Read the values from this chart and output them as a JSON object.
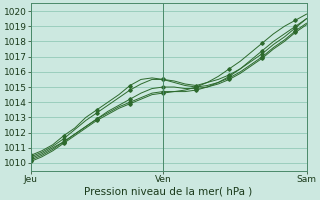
{
  "bg_color": "#cce8e0",
  "grid_color": "#88c4b0",
  "line_color": "#2d6a2d",
  "xlabel": "Pression niveau de la mer( hPa )",
  "xlabel_fontsize": 7.5,
  "tick_fontsize": 6.5,
  "xtick_labels": [
    "Jeu",
    "Ven",
    "Sam"
  ],
  "xtick_positions": [
    0,
    0.48,
    1.0
  ],
  "ylim": [
    1009.5,
    1020.5
  ],
  "yticks": [
    1010,
    1011,
    1012,
    1013,
    1014,
    1015,
    1016,
    1017,
    1018,
    1019,
    1020
  ],
  "series": [
    {
      "x": [
        0.0,
        0.04,
        0.08,
        0.12,
        0.16,
        0.2,
        0.24,
        0.28,
        0.32,
        0.36,
        0.4,
        0.44,
        0.48,
        0.52,
        0.56,
        0.6,
        0.64,
        0.68,
        0.72,
        0.76,
        0.8,
        0.84,
        0.88,
        0.92,
        0.96,
        1.0
      ],
      "y": [
        1010.5,
        1010.8,
        1011.2,
        1011.8,
        1012.3,
        1013.0,
        1013.5,
        1014.0,
        1014.5,
        1015.1,
        1015.5,
        1015.6,
        1015.5,
        1015.4,
        1015.2,
        1015.1,
        1015.3,
        1015.5,
        1015.8,
        1016.2,
        1016.7,
        1017.2,
        1017.8,
        1018.3,
        1018.9,
        1019.5
      ]
    },
    {
      "x": [
        0.0,
        0.04,
        0.08,
        0.12,
        0.16,
        0.2,
        0.24,
        0.28,
        0.32,
        0.36,
        0.4,
        0.44,
        0.48,
        0.52,
        0.56,
        0.6,
        0.64,
        0.68,
        0.72,
        0.76,
        0.8,
        0.84,
        0.88,
        0.92,
        0.96,
        1.0
      ],
      "y": [
        1010.4,
        1010.7,
        1011.1,
        1011.6,
        1012.2,
        1012.8,
        1013.3,
        1013.8,
        1014.3,
        1014.8,
        1015.2,
        1015.5,
        1015.5,
        1015.3,
        1015.1,
        1015.0,
        1015.1,
        1015.3,
        1015.6,
        1016.0,
        1016.5,
        1017.0,
        1017.6,
        1018.1,
        1018.7,
        1019.2
      ]
    },
    {
      "x": [
        0.0,
        0.04,
        0.08,
        0.12,
        0.16,
        0.2,
        0.24,
        0.28,
        0.32,
        0.36,
        0.4,
        0.44,
        0.48,
        0.52,
        0.56,
        0.6,
        0.64,
        0.68,
        0.72,
        0.76,
        0.8,
        0.84,
        0.88,
        0.92,
        0.96,
        1.0
      ],
      "y": [
        1010.3,
        1010.6,
        1011.0,
        1011.4,
        1011.9,
        1012.4,
        1012.9,
        1013.4,
        1013.8,
        1014.2,
        1014.6,
        1014.9,
        1015.0,
        1015.0,
        1014.9,
        1014.9,
        1015.0,
        1015.2,
        1015.5,
        1015.9,
        1016.4,
        1016.9,
        1017.5,
        1018.0,
        1018.6,
        1019.1
      ]
    },
    {
      "x": [
        0.0,
        0.04,
        0.08,
        0.12,
        0.16,
        0.2,
        0.24,
        0.28,
        0.32,
        0.36,
        0.4,
        0.44,
        0.48,
        0.52,
        0.56,
        0.6,
        0.64,
        0.68,
        0.72,
        0.76,
        0.8,
        0.84,
        0.88,
        0.92,
        0.96,
        1.0
      ],
      "y": [
        1010.2,
        1010.5,
        1010.9,
        1011.4,
        1011.9,
        1012.4,
        1012.9,
        1013.3,
        1013.7,
        1014.0,
        1014.3,
        1014.6,
        1014.7,
        1014.7,
        1014.7,
        1014.8,
        1015.0,
        1015.3,
        1015.7,
        1016.2,
        1016.8,
        1017.4,
        1018.0,
        1018.5,
        1019.0,
        1019.5
      ]
    },
    {
      "x": [
        0.0,
        0.04,
        0.08,
        0.12,
        0.16,
        0.2,
        0.24,
        0.28,
        0.32,
        0.36,
        0.4,
        0.44,
        0.48,
        0.52,
        0.56,
        0.6,
        0.64,
        0.68,
        0.72,
        0.76,
        0.8,
        0.84,
        0.88,
        0.92,
        0.96,
        1.0
      ],
      "y": [
        1010.1,
        1010.4,
        1010.8,
        1011.3,
        1011.8,
        1012.3,
        1012.8,
        1013.2,
        1013.6,
        1013.9,
        1014.2,
        1014.5,
        1014.6,
        1014.7,
        1014.8,
        1015.0,
        1015.3,
        1015.7,
        1016.2,
        1016.7,
        1017.3,
        1017.9,
        1018.5,
        1019.0,
        1019.4,
        1019.8
      ]
    }
  ]
}
